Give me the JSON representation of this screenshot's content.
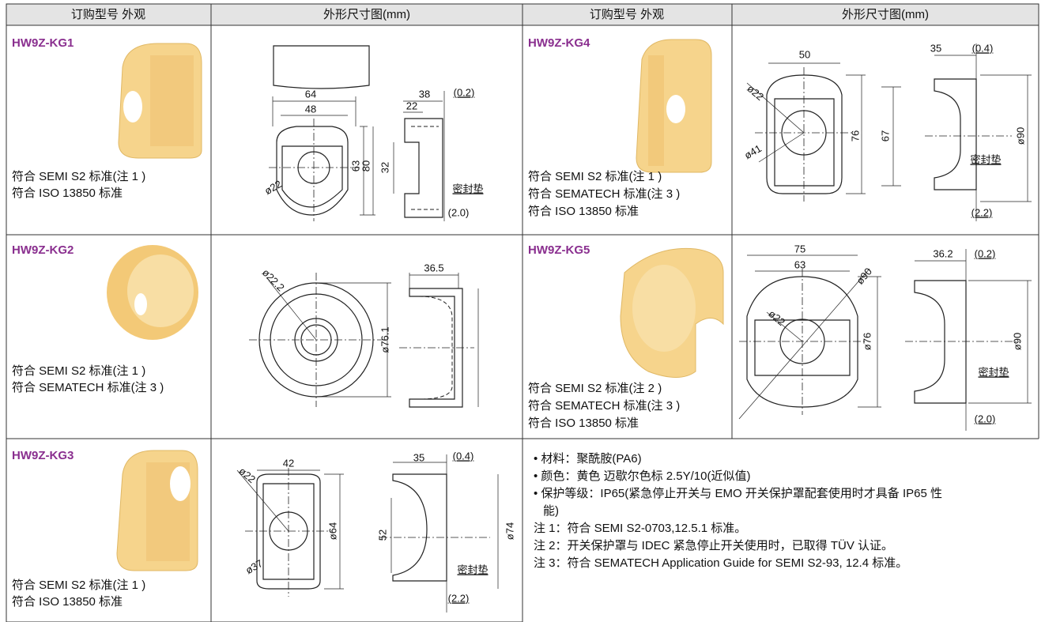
{
  "header": [
    "订购型号 外观",
    "外形尺寸图(mm)",
    "订购型号 外观",
    "外形尺寸图(mm)"
  ],
  "products": [
    {
      "model": "HW9Z-KG1",
      "standards": [
        "符合 SEMI S2 标准(注 1 )",
        "符合 ISO 13850 标准"
      ],
      "dimensions": [
        "64",
        "48",
        "38",
        "22",
        "(0.2)",
        "63",
        "80",
        "32",
        "ø22",
        "密封垫",
        "(2.0)"
      ]
    },
    {
      "model": "HW9Z-KG2",
      "standards": [
        "符合 SEMI S2 标准(注 1 )",
        "符合 SEMATECH 标准(注 3 )"
      ],
      "dimensions": [
        "ø22.2",
        "36.5",
        "ø76.1"
      ]
    },
    {
      "model": "HW9Z-KG3",
      "standards": [
        "符合 SEMI S2 标准(注 1 )",
        "符合 ISO 13850 标准"
      ],
      "dimensions": [
        "42",
        "ø22",
        "ø37",
        "ø64",
        "35",
        "(0.4)",
        "52",
        "ø74",
        "密封垫",
        "(2.2)"
      ]
    },
    {
      "model": "HW9Z-KG4",
      "standards": [
        "符合 SEMI S2 标准(注 1 )",
        "符合 SEMATECH 标准(注 3 )",
        "符合 ISO 13850 标准"
      ],
      "dimensions": [
        "50",
        "ø22",
        "ø41",
        "76",
        "67",
        "35",
        "(0.4)",
        "ø90",
        "密封垫",
        "(2.2)"
      ]
    },
    {
      "model": "HW9Z-KG5",
      "standards": [
        "符合 SEMI S2 标准(注 2 )",
        "符合 SEMATECH 标准(注 3 )",
        "符合 ISO 13850 标准"
      ],
      "dimensions": [
        "75",
        "63",
        "ø90",
        "ø22",
        "ø76",
        "36.2",
        "(0.2)",
        "ø90",
        "密封垫",
        "(2.0)"
      ]
    }
  ],
  "notes": [
    "• 材料：聚酰胺(PA6)",
    "• 颜色：黄色 迈歇尔色标 2.5Y/10(近似值)",
    "• 保护等级：IP65(紧急停止开关与 EMO 开关保护罩配套使用时才具备 IP65 性",
    "能)",
    "注 1：符合 SEMI S2-0703,12.5.1 标准。",
    "注 2：开关保护罩与 IDEC 紧急停止开关使用时，已取得 TÜV 认证。",
    "注 3：符合 SEMATECH Application Guide for SEMI S2-93, 12.4 标准。"
  ]
}
